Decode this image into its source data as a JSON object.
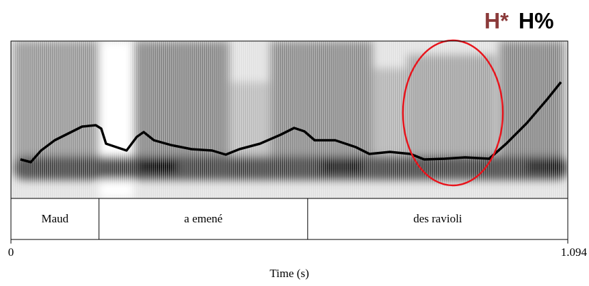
{
  "chart_data": {
    "type": "textgrid",
    "annotation": {
      "accent": "H*",
      "boundary": "H%"
    },
    "x_label": "Time (s)",
    "xlim": [
      0,
      1.094
    ],
    "xticks": [
      0,
      1.094
    ],
    "intervals": [
      {
        "label": "Maud",
        "start": 0,
        "end": 0.173
      },
      {
        "label": "a emené",
        "start": 0.173,
        "end": 0.583
      },
      {
        "label": "des ravioli",
        "start": 0.583,
        "end": 1.094
      }
    ]
  }
}
